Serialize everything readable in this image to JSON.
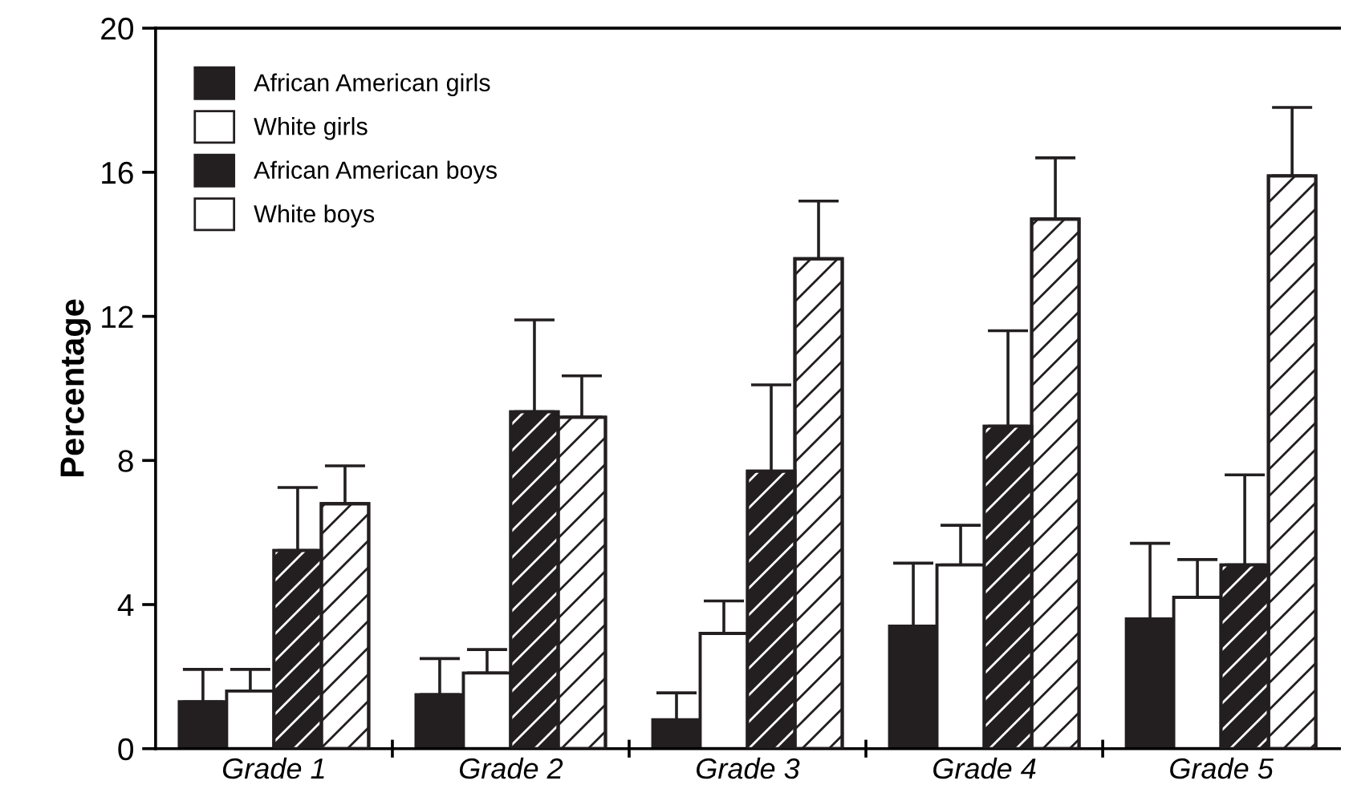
{
  "chart_data": {
    "type": "bar",
    "ylabel": "Percentage",
    "categories": [
      "Grade 1",
      "Grade 2",
      "Grade 3",
      "Grade 4",
      "Grade 5"
    ],
    "ylim": [
      0,
      20
    ],
    "yticks": [
      0,
      4,
      8,
      12,
      16,
      20
    ],
    "grid": false,
    "legend": "top left",
    "series": [
      {
        "name": "African American girls",
        "color": "#231f20",
        "values": [
          1.3,
          1.5,
          0.8,
          3.4,
          3.6
        ],
        "errors": [
          [
            1.3,
            2.2
          ],
          [
            1.5,
            2.5
          ],
          [
            0.8,
            1.55
          ],
          [
            3.4,
            5.15
          ],
          [
            3.6,
            5.7
          ]
        ]
      },
      {
        "name": "White girls",
        "color": "#ffffff",
        "values": [
          1.6,
          2.1,
          3.2,
          5.1,
          4.2
        ],
        "errors": [
          [
            1.6,
            2.2
          ],
          [
            2.1,
            2.75
          ],
          [
            3.2,
            4.1
          ],
          [
            5.1,
            6.2
          ],
          [
            4.2,
            5.25
          ]
        ]
      },
      {
        "name": "African American boys",
        "color": "#231f20",
        "values": [
          5.5,
          9.35,
          7.7,
          8.95,
          5.1
        ],
        "errors": [
          [
            5.5,
            7.25
          ],
          [
            9.35,
            11.9
          ],
          [
            7.7,
            10.1
          ],
          [
            8.95,
            11.6
          ],
          [
            5.1,
            7.6
          ]
        ]
      },
      {
        "name": "White boys",
        "color": "#ffffff",
        "values": [
          6.8,
          9.2,
          13.6,
          14.7,
          15.9
        ],
        "errors": [
          [
            6.8,
            7.85
          ],
          [
            9.2,
            10.35
          ],
          [
            13.6,
            15.2
          ],
          [
            14.7,
            16.4
          ],
          [
            15.9,
            17.8
          ]
        ]
      }
    ]
  }
}
